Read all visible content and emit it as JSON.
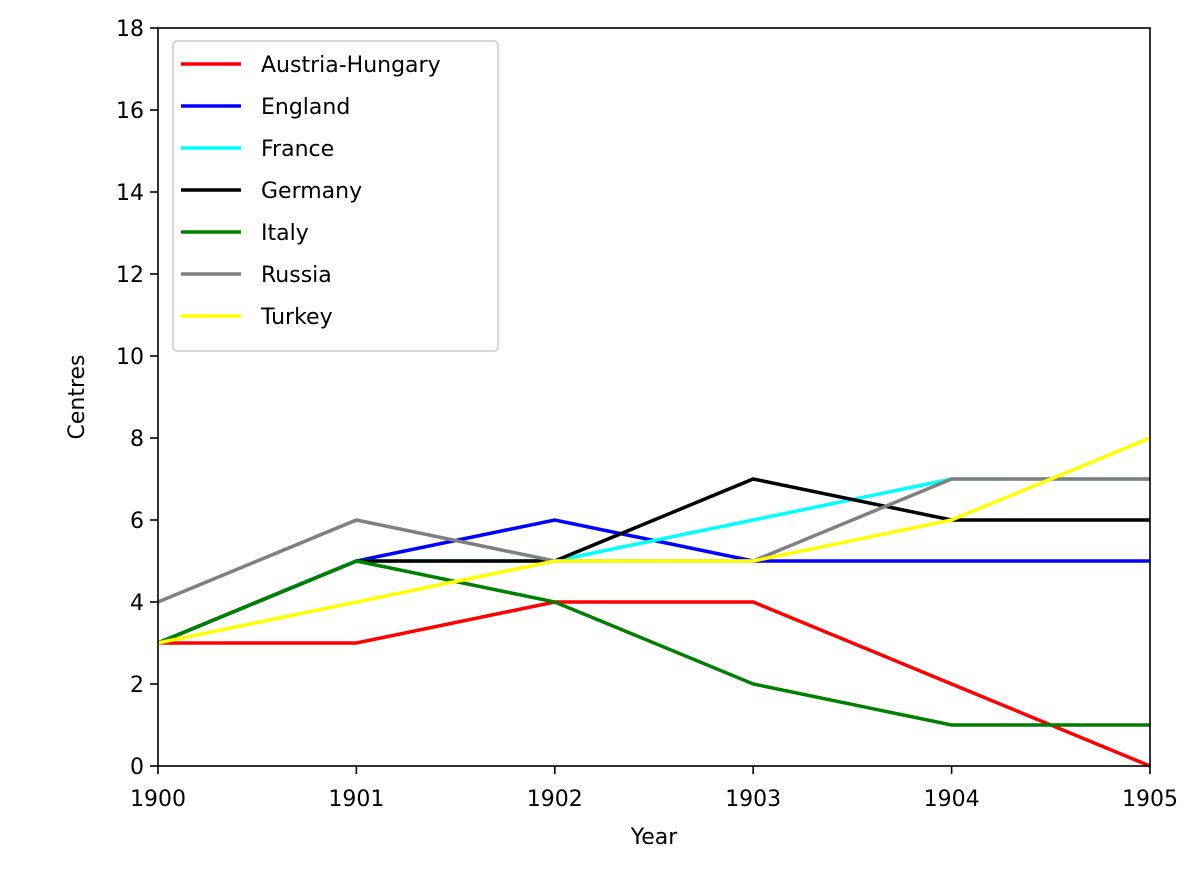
{
  "chart_data": {
    "type": "line",
    "title": "",
    "xlabel": "Year",
    "ylabel": "Centres",
    "x": [
      1900,
      1901,
      1902,
      1903,
      1904,
      1905
    ],
    "x_tick_labels": [
      "1900",
      "1901",
      "1902",
      "1903",
      "1904",
      "1905"
    ],
    "xlim": [
      1900,
      1905
    ],
    "ylim": [
      0,
      18
    ],
    "y_ticks": [
      0,
      2,
      4,
      6,
      8,
      10,
      12,
      14,
      16,
      18
    ],
    "y_tick_labels": [
      "0",
      "2",
      "4",
      "6",
      "8",
      "10",
      "12",
      "14",
      "16",
      "18"
    ],
    "grid": false,
    "legend_position": "top-left",
    "series": [
      {
        "name": "Austria-Hungary",
        "color": "#ff0000",
        "values": [
          3,
          3,
          4,
          4,
          2,
          0
        ]
      },
      {
        "name": "England",
        "color": "#0000ff",
        "values": [
          3,
          5,
          6,
          5,
          5,
          5
        ]
      },
      {
        "name": "France",
        "color": "#00ffff",
        "values": [
          3,
          5,
          5,
          6,
          7,
          7
        ]
      },
      {
        "name": "Germany",
        "color": "#000000",
        "values": [
          3,
          5,
          5,
          7,
          6,
          6
        ]
      },
      {
        "name": "Italy",
        "color": "#008000",
        "values": [
          3,
          5,
          4,
          2,
          1,
          1
        ]
      },
      {
        "name": "Russia",
        "color": "#808080",
        "values": [
          4,
          6,
          5,
          5,
          7,
          7
        ]
      },
      {
        "name": "Turkey",
        "color": "#ffff00",
        "values": [
          3,
          4,
          5,
          5,
          6,
          8
        ]
      }
    ]
  }
}
